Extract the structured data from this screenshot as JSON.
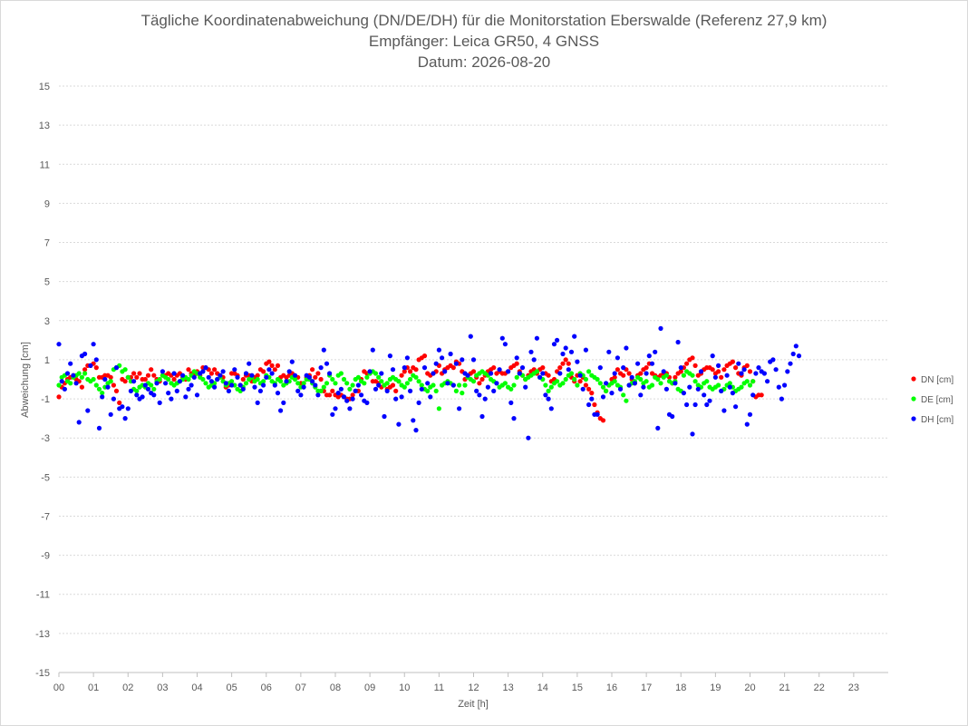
{
  "chart_data": {
    "type": "scatter",
    "title_lines": [
      "Tägliche Koordinatenabweichung (DN/DE/DH) für die Monitorstation Eberswalde (Referenz 27,9 km)",
      "Empfänger: Leica GR50, 4 GNSS",
      "Datum: 2026-08-20"
    ],
    "xlabel": "Zeit [h]",
    "ylabel": "Abweichung [cm]",
    "xlim": [
      0,
      24
    ],
    "ylim": [
      -15,
      15
    ],
    "x_ticks": [
      0,
      1,
      2,
      3,
      4,
      5,
      6,
      7,
      8,
      9,
      10,
      11,
      12,
      13,
      14,
      15,
      16,
      17,
      18,
      19,
      20,
      21,
      22,
      23
    ],
    "x_tick_labels": [
      "00",
      "01",
      "02",
      "03",
      "04",
      "05",
      "06",
      "07",
      "08",
      "09",
      "10",
      "11",
      "12",
      "13",
      "14",
      "15",
      "16",
      "17",
      "18",
      "19",
      "20",
      "21",
      "22",
      "23"
    ],
    "y_ticks": [
      15,
      13,
      11,
      9,
      7,
      5,
      3,
      1,
      -1,
      -3,
      -5,
      -7,
      -9,
      -11,
      -13,
      -15
    ],
    "y_tick_labels": [
      "15",
      "13",
      "11",
      "9",
      "7",
      "5",
      "3",
      "1",
      "-1",
      "-3",
      "-5",
      "-7",
      "-9",
      "-11",
      "-13",
      "-15"
    ],
    "grid": "horizontal dotted",
    "legend_position": "right",
    "sampling_interval_min": 5,
    "series": [
      {
        "name": "DN [cm]",
        "color": "#ff0000",
        "values": [
          -0.9,
          -0.4,
          -0.2,
          0.0,
          0.1,
          0.2,
          0.0,
          -0.1,
          -0.4,
          0.5,
          0.7,
          0.7,
          0.8,
          0.6,
          0.1,
          0.1,
          0.2,
          0.2,
          0.1,
          -0.3,
          -0.6,
          -1.2,
          0.0,
          -0.1,
          0.1,
          0.1,
          0.3,
          0.1,
          0.3,
          0.0,
          0.0,
          0.2,
          0.5,
          0.2,
          0.0,
          -0.1,
          0.2,
          0.2,
          0.3,
          0.2,
          0.0,
          0.2,
          0.3,
          0.1,
          0.0,
          0.5,
          0.3,
          0.2,
          0.4,
          0.2,
          0.6,
          0.6,
          0.5,
          0.3,
          0.5,
          0.3,
          0.2,
          0.1,
          -0.4,
          -0.3,
          0.3,
          0.3,
          0.2,
          -0.3,
          0.0,
          0.2,
          0.2,
          -0.1,
          0.1,
          0.2,
          0.5,
          0.4,
          0.8,
          0.9,
          0.7,
          0.5,
          0.7,
          0.1,
          0.2,
          0.1,
          0.2,
          0.3,
          0.1,
          0.1,
          -0.2,
          -0.2,
          0.1,
          0.2,
          0.5,
          0.1,
          0.3,
          0.0,
          -0.6,
          -0.8,
          -0.8,
          -0.6,
          -0.8,
          -0.9,
          -0.8,
          -0.9,
          -1.0,
          -1.0,
          -0.8,
          -0.6,
          -0.6,
          0.0,
          0.4,
          0.3,
          0.3,
          -0.1,
          -0.1,
          -0.2,
          -0.4,
          -0.3,
          -0.5,
          -0.4,
          -0.3,
          -0.6,
          -0.1,
          0.2,
          0.4,
          0.6,
          0.4,
          0.6,
          0.5,
          1.0,
          1.1,
          1.2,
          0.3,
          0.2,
          0.3,
          0.4,
          0.7,
          0.3,
          0.5,
          0.6,
          0.7,
          0.6,
          0.9,
          0.8,
          0.4,
          0.0,
          0.2,
          0.3,
          0.4,
          0.1,
          -0.2,
          0.0,
          0.2,
          0.4,
          0.5,
          0.6,
          0.3,
          0.4,
          0.3,
          0.3,
          0.4,
          0.6,
          0.7,
          0.8,
          0.4,
          0.2,
          0.0,
          0.2,
          0.4,
          0.5,
          0.3,
          0.5,
          0.6,
          0.3,
          0.2,
          -0.1,
          0.0,
          0.4,
          0.6,
          0.8,
          1.0,
          0.8,
          0.1,
          -0.1,
          0.2,
          -0.1,
          0.1,
          -0.3,
          -0.5,
          -0.7,
          -1.3,
          -1.7,
          -2.0,
          -2.1,
          -0.6,
          -0.3,
          0.0,
          0.1,
          0.5,
          0.3,
          0.2,
          0.5,
          0.3,
          0.0,
          -0.2,
          0.2,
          0.3,
          0.5,
          0.6,
          0.8,
          0.3,
          0.2,
          0.1,
          0.2,
          0.3,
          0.3,
          0.1,
          -0.2,
          0.1,
          0.3,
          0.4,
          0.6,
          0.8,
          1.0,
          1.1,
          0.7,
          0.2,
          0.3,
          0.5,
          0.6,
          0.6,
          0.5,
          0.3,
          0.4,
          0.1,
          0.5,
          0.7,
          0.8,
          0.9,
          0.6,
          0.3,
          0.2,
          0.6,
          0.7,
          0.4,
          -0.1,
          -0.9,
          -0.8,
          -0.8
        ]
      },
      {
        "name": "DE [cm]",
        "color": "#00ff00",
        "values": [
          -0.3,
          0.1,
          0.2,
          -0.1,
          -0.2,
          0.1,
          0.2,
          0.3,
          0.1,
          0.3,
          0.0,
          -0.1,
          0.0,
          -0.3,
          -0.5,
          -0.7,
          -0.4,
          -0.2,
          -0.1,
          0.5,
          0.6,
          0.7,
          0.4,
          0.5,
          0.1,
          -0.1,
          -0.5,
          -0.6,
          -0.4,
          -0.3,
          -0.4,
          -0.2,
          -0.3,
          -0.5,
          -0.1,
          0.0,
          0.2,
          0.1,
          0.0,
          -0.2,
          -0.3,
          -0.2,
          -0.1,
          0.0,
          0.1,
          0.0,
          0.2,
          0.4,
          0.3,
          0.1,
          0.0,
          -0.2,
          -0.4,
          -0.3,
          -0.2,
          0.0,
          0.1,
          -0.1,
          -0.3,
          -0.2,
          -0.1,
          -0.3,
          -0.5,
          -0.6,
          -0.4,
          -0.2,
          0.0,
          0.1,
          -0.1,
          0.0,
          -0.2,
          -0.1,
          0.2,
          0.1,
          -0.1,
          -0.2,
          0.0,
          -0.1,
          -0.3,
          -0.2,
          -0.1,
          0.1,
          0.0,
          -0.2,
          -0.4,
          -0.2,
          0.0,
          0.0,
          -0.2,
          -0.4,
          -0.6,
          -0.6,
          -0.4,
          -0.2,
          0.2,
          0.0,
          -0.2,
          0.2,
          0.3,
          0.0,
          -0.2,
          -0.5,
          -0.3,
          0.0,
          0.1,
          -0.1,
          -0.2,
          0.1,
          0.3,
          0.4,
          0.3,
          0.1,
          -0.1,
          -0.3,
          -0.2,
          0.0,
          0.1,
          0.0,
          -0.1,
          -0.3,
          -0.4,
          -0.2,
          0.0,
          0.2,
          0.1,
          -0.1,
          -0.3,
          -0.5,
          -0.6,
          -0.4,
          -0.3,
          -0.6,
          -1.5,
          -0.3,
          -0.2,
          -0.1,
          -0.2,
          -0.3,
          -0.6,
          -0.3,
          -0.7,
          -0.3,
          0.1,
          0.0,
          -0.1,
          0.2,
          0.3,
          0.4,
          0.3,
          0.2,
          0.0,
          -0.1,
          -0.2,
          -0.4,
          -0.3,
          -0.2,
          -0.4,
          -0.5,
          -0.3,
          0.1,
          0.3,
          0.2,
          0.0,
          0.1,
          0.2,
          0.3,
          0.4,
          0.1,
          0.0,
          -0.3,
          -0.6,
          -0.4,
          -0.2,
          -0.1,
          -0.3,
          -0.2,
          0.0,
          0.2,
          0.3,
          0.0,
          -0.3,
          0.3,
          0.2,
          0.0,
          0.4,
          0.2,
          0.1,
          0.0,
          -0.2,
          -0.4,
          -0.6,
          -0.3,
          -0.2,
          -0.1,
          -0.3,
          -0.4,
          -0.8,
          -1.1,
          -0.3,
          -0.2,
          -0.1,
          0.1,
          0.0,
          -0.2,
          -0.1,
          -0.4,
          -0.3,
          0.1,
          0.0,
          -0.2,
          0.1,
          0.2,
          -0.1,
          -0.2,
          -0.1,
          -0.5,
          -0.6,
          0.2,
          0.4,
          0.3,
          0.2,
          -0.1,
          -0.3,
          -0.4,
          -0.2,
          -0.1,
          -0.4,
          -0.5,
          -0.4,
          -0.3,
          -0.6,
          -0.5,
          -0.3,
          -0.2,
          -0.4,
          -0.6,
          -0.5,
          -0.4,
          -0.2,
          -0.1,
          -0.3,
          -0.1
        ]
      },
      {
        "name": "DH [cm]",
        "color": "#0000ff",
        "values": [
          1.8,
          -0.1,
          -0.5,
          0.3,
          0.8,
          0.2,
          -0.2,
          -2.2,
          1.2,
          1.3,
          -1.6,
          0.7,
          1.8,
          1.0,
          -2.5,
          -0.9,
          0.0,
          -0.4,
          -1.8,
          -1.0,
          0.6,
          -1.5,
          -1.4,
          -2.0,
          -1.5,
          -0.6,
          -0.1,
          -0.8,
          -1.0,
          -0.9,
          -0.3,
          -0.5,
          -0.7,
          -0.8,
          -0.2,
          -1.2,
          0.4,
          -0.2,
          -0.7,
          -1.0,
          0.3,
          -0.6,
          -0.1,
          0.2,
          -0.9,
          -0.5,
          -0.3,
          0.1,
          -0.8,
          0.3,
          0.4,
          0.6,
          0.1,
          -0.1,
          -0.4,
          0.0,
          0.2,
          0.4,
          -0.2,
          -0.6,
          -0.3,
          0.5,
          0.1,
          -0.3,
          -0.5,
          0.3,
          0.8,
          0.2,
          -0.4,
          -1.2,
          -0.6,
          -0.3,
          0.1,
          0.5,
          0.3,
          -0.3,
          -0.7,
          -1.6,
          -1.2,
          -0.1,
          0.4,
          0.9,
          0.2,
          -0.6,
          -0.8,
          -0.4,
          0.2,
          0.1,
          -0.1,
          -0.3,
          -0.8,
          0.6,
          1.5,
          0.8,
          0.3,
          -1.8,
          -1.5,
          -0.7,
          -0.5,
          -0.9,
          -1.1,
          -1.5,
          -1.0,
          -0.6,
          -0.3,
          -0.8,
          -1.1,
          -1.2,
          0.4,
          1.5,
          -0.5,
          -0.3,
          0.3,
          -1.9,
          -0.6,
          1.2,
          0.5,
          -1.0,
          -2.3,
          -0.9,
          0.6,
          1.1,
          -0.6,
          -2.1,
          -2.6,
          -1.2,
          -0.5,
          0.6,
          -0.2,
          -0.9,
          0.3,
          0.8,
          1.5,
          1.1,
          0.4,
          -0.2,
          1.3,
          -0.3,
          0.8,
          -1.5,
          1.0,
          0.3,
          0.2,
          2.2,
          1.0,
          -0.6,
          -0.8,
          -1.9,
          -1.0,
          -0.4,
          0.3,
          -0.6,
          -0.2,
          0.5,
          2.1,
          1.8,
          0.4,
          -1.2,
          -2.0,
          1.1,
          0.3,
          0.6,
          -0.4,
          -3.0,
          1.4,
          1.0,
          2.1,
          0.1,
          0.3,
          -0.8,
          -1.0,
          -1.5,
          1.8,
          2.0,
          0.3,
          1.3,
          1.6,
          0.5,
          1.4,
          2.2,
          0.9,
          0.2,
          -0.5,
          1.5,
          -1.3,
          -1.0,
          -1.8,
          -1.8,
          0.6,
          -0.9,
          -0.2,
          1.4,
          -0.7,
          0.3,
          1.1,
          -0.5,
          0.6,
          1.6,
          -0.3,
          0.1,
          -0.2,
          0.8,
          -0.8,
          -0.4,
          0.3,
          1.2,
          0.8,
          1.4,
          -2.5,
          2.6,
          0.4,
          -0.5,
          -1.8,
          -1.9,
          -0.2,
          1.9,
          0.6,
          -0.7,
          -1.3,
          -0.4,
          -2.8,
          -1.3,
          -0.5,
          0.4,
          -0.8,
          -1.3,
          -1.1,
          1.2,
          0.1,
          0.7,
          -0.6,
          -1.6,
          0.2,
          -0.4,
          -0.7,
          -1.4,
          0.8,
          0.3,
          0.5,
          -2.3,
          -1.8,
          -0.8,
          0.3,
          0.6,
          0.4,
          0.3,
          -0.1,
          0.9,
          1.0,
          0.5,
          -0.4,
          -1.0,
          -0.3,
          0.4,
          0.8,
          1.3,
          1.7,
          1.2
        ]
      }
    ]
  }
}
